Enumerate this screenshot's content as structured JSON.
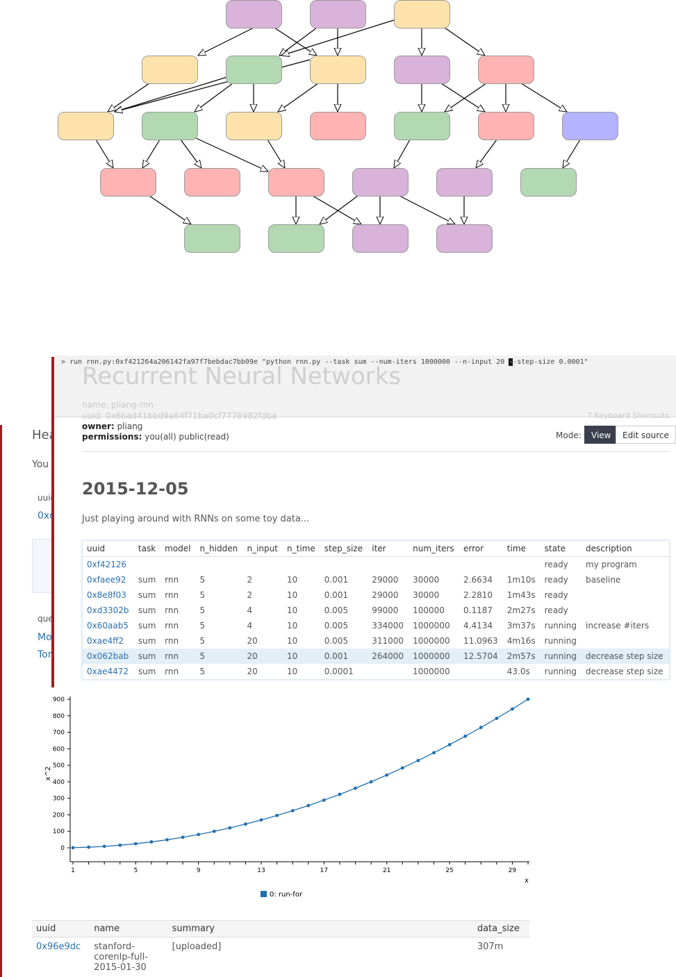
{
  "graph": {
    "colors": {
      "yellow": "#fde3ab",
      "purple": "#d9b3d9",
      "green": "#b3d9b3",
      "red": "#ffb3b3",
      "blue": "#b3b3ff"
    }
  },
  "command_bar": {
    "prompt": ">",
    "command_before_cursor": "run rnn.py:0xf421264a206142fa97f7bebdac7bb09e \"python rnn.py --task sum --num-iters 1000000 --n-input 20 ",
    "cursor_char": "-",
    "command_after_cursor": "-step-size 0.0001\""
  },
  "worksheet": {
    "title_ghost": "Recurrent Neural Networks",
    "name_ghost": "name: pliang-rnn",
    "uuid_ghost": "uuid: 0x6bad41bbd9a64f71ba0cf7776982fdba",
    "keyboard_shortcuts": "? Keyboard Shortcuts",
    "owner_label": "owner:",
    "owner_value": "pliang",
    "permissions_label": "permissions:",
    "permissions_value": "you(all) public(read)",
    "mode_label": "Mode:",
    "view_button": "View",
    "edit_button": "Edit source",
    "date_heading": "2015-12-05",
    "description": "Just playing around with RNNs on some toy data..."
  },
  "runs_table": {
    "headers": [
      "uuid",
      "task",
      "model",
      "n_hidden",
      "n_input",
      "n_time",
      "step_size",
      "iter",
      "num_iters",
      "error",
      "time",
      "state",
      "description"
    ],
    "rows": [
      [
        "0xf42126",
        "",
        "",
        "",
        "",
        "",
        "",
        "",
        "",
        "",
        "",
        "ready",
        "my program"
      ],
      [
        "0xfaee92",
        "sum",
        "rnn",
        "5",
        "2",
        "10",
        "0.001",
        "29000",
        "30000",
        "2.6634",
        "1m10s",
        "ready",
        "baseline"
      ],
      [
        "0x8e8f03",
        "sum",
        "rnn",
        "5",
        "2",
        "10",
        "0.001",
        "29000",
        "30000",
        "2.2810",
        "1m43s",
        "ready",
        ""
      ],
      [
        "0xd3302b",
        "sum",
        "rnn",
        "5",
        "4",
        "10",
        "0.005",
        "99000",
        "100000",
        "0.1187",
        "2m27s",
        "ready",
        ""
      ],
      [
        "0x60aab5",
        "sum",
        "rnn",
        "5",
        "4",
        "10",
        "0.005",
        "334000",
        "1000000",
        "4.4134",
        "3m37s",
        "running",
        "increase #iters"
      ],
      [
        "0xae4ff2",
        "sum",
        "rnn",
        "5",
        "20",
        "10",
        "0.005",
        "311000",
        "1000000",
        "11.0963",
        "4m16s",
        "running",
        ""
      ],
      [
        "0x062bab",
        "sum",
        "rnn",
        "5",
        "20",
        "10",
        "0.001",
        "264000",
        "1000000",
        "12.5704",
        "2m57s",
        "running",
        "decrease step size"
      ],
      [
        "0xae4472",
        "sum",
        "rnn",
        "5",
        "20",
        "10",
        "0.0001",
        "",
        "1000000",
        "",
        "43.0s",
        "running",
        "decrease step size"
      ]
    ],
    "selected_row": 6
  },
  "back_worksheet": {
    "heading_fragment": "Hea",
    "you_fragment": "You",
    "uuid_header_fragment": "uuid",
    "uuid_link_fragment": "0xc",
    "query_header_fragment": "que",
    "link1_fragment": "Mo",
    "link2_fragment": "Tor"
  },
  "chart_data": {
    "type": "line",
    "title": "",
    "xlabel": "x",
    "ylabel": "x^2",
    "xlim": [
      1,
      30
    ],
    "ylim": [
      0,
      900
    ],
    "xticks": [
      1,
      5,
      9,
      13,
      17,
      21,
      25,
      29
    ],
    "yticks": [
      0,
      100,
      200,
      300,
      400,
      500,
      600,
      700,
      800,
      900
    ],
    "series": [
      {
        "name": "0: run-for",
        "color": "#1f6fae",
        "x": [
          1,
          2,
          3,
          4,
          5,
          6,
          7,
          8,
          9,
          10,
          11,
          12,
          13,
          14,
          15,
          16,
          17,
          18,
          19,
          20,
          21,
          22,
          23,
          24,
          25,
          26,
          27,
          28,
          29,
          30
        ],
        "values": [
          1,
          4,
          9,
          16,
          25,
          36,
          49,
          64,
          81,
          100,
          121,
          144,
          169,
          196,
          225,
          256,
          289,
          324,
          361,
          400,
          441,
          484,
          529,
          576,
          625,
          676,
          729,
          784,
          841,
          900
        ]
      }
    ],
    "legend": "bottom-center"
  },
  "bundles_table": {
    "headers": [
      "uuid",
      "name",
      "summary",
      "data_size"
    ],
    "rows": [
      {
        "uuid": "0x96e9dc",
        "name": "stanford-\ncorenlp-full-\n2015-01-30",
        "summary": "[uploaded]",
        "data_size": "307m"
      }
    ]
  }
}
